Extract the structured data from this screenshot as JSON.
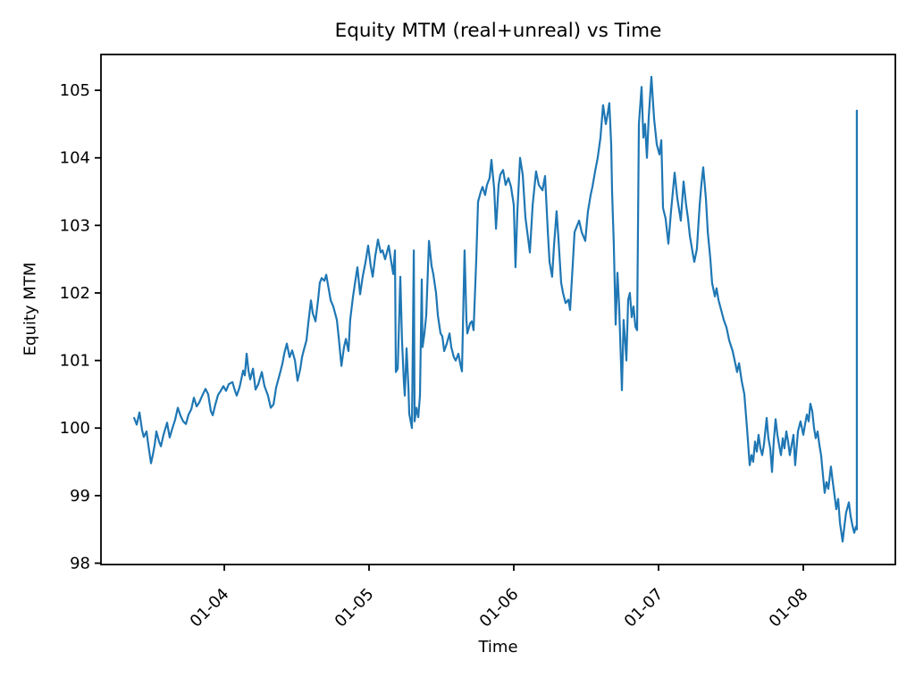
{
  "chart_data": {
    "type": "line",
    "title": "Equity MTM (real+unreal) vs Time",
    "xlabel": "Time",
    "ylabel": "Equity MTM",
    "series_name": "Equity MTM (real+unreal)",
    "line_color": "#1f77b4",
    "background_color": "#ffffff",
    "spine_color": "#000000",
    "grid": false,
    "legend": null,
    "x_unit": "fractional days, 0 = 01-03 00:00",
    "xlim": [
      0.148,
      5.636
    ],
    "ylim": [
      97.98,
      105.53
    ],
    "x_tick_rotation_deg": 45,
    "x_ticks": [
      {
        "pos": 1,
        "label": "01-04"
      },
      {
        "pos": 2,
        "label": "01-05"
      },
      {
        "pos": 3,
        "label": "01-06"
      },
      {
        "pos": 4,
        "label": "01-07"
      },
      {
        "pos": 5,
        "label": "01-08"
      }
    ],
    "y_ticks": [
      98,
      99,
      100,
      101,
      102,
      103,
      104,
      105
    ],
    "points": [
      [
        0.377,
        100.15
      ],
      [
        0.395,
        100.05
      ],
      [
        0.414,
        100.23
      ],
      [
        0.432,
        99.97
      ],
      [
        0.444,
        99.87
      ],
      [
        0.463,
        99.95
      ],
      [
        0.475,
        99.75
      ],
      [
        0.494,
        99.48
      ],
      [
        0.506,
        99.6
      ],
      [
        0.519,
        99.75
      ],
      [
        0.531,
        99.95
      ],
      [
        0.549,
        99.8
      ],
      [
        0.562,
        99.73
      ],
      [
        0.58,
        99.9
      ],
      [
        0.605,
        100.08
      ],
      [
        0.623,
        99.86
      ],
      [
        0.642,
        100.0
      ],
      [
        0.66,
        100.12
      ],
      [
        0.679,
        100.3
      ],
      [
        0.698,
        100.18
      ],
      [
        0.716,
        100.1
      ],
      [
        0.735,
        100.06
      ],
      [
        0.753,
        100.2
      ],
      [
        0.772,
        100.28
      ],
      [
        0.79,
        100.45
      ],
      [
        0.809,
        100.32
      ],
      [
        0.827,
        100.38
      ],
      [
        0.852,
        100.5
      ],
      [
        0.87,
        100.58
      ],
      [
        0.889,
        100.5
      ],
      [
        0.907,
        100.25
      ],
      [
        0.92,
        100.19
      ],
      [
        0.938,
        100.35
      ],
      [
        0.957,
        100.49
      ],
      [
        0.975,
        100.55
      ],
      [
        0.994,
        100.62
      ],
      [
        1.012,
        100.55
      ],
      [
        1.031,
        100.65
      ],
      [
        1.056,
        100.68
      ],
      [
        1.074,
        100.55
      ],
      [
        1.086,
        100.48
      ],
      [
        1.105,
        100.6
      ],
      [
        1.117,
        100.72
      ],
      [
        1.13,
        100.85
      ],
      [
        1.142,
        100.78
      ],
      [
        1.154,
        101.1
      ],
      [
        1.167,
        100.85
      ],
      [
        1.179,
        100.72
      ],
      [
        1.198,
        100.88
      ],
      [
        1.216,
        100.57
      ],
      [
        1.235,
        100.65
      ],
      [
        1.259,
        100.83
      ],
      [
        1.278,
        100.62
      ],
      [
        1.302,
        100.48
      ],
      [
        1.321,
        100.3
      ],
      [
        1.34,
        100.35
      ],
      [
        1.358,
        100.6
      ],
      [
        1.383,
        100.8
      ],
      [
        1.401,
        100.95
      ],
      [
        1.414,
        101.1
      ],
      [
        1.432,
        101.25
      ],
      [
        1.451,
        101.05
      ],
      [
        1.469,
        101.15
      ],
      [
        1.488,
        101.0
      ],
      [
        1.506,
        100.7
      ],
      [
        1.525,
        100.88
      ],
      [
        1.537,
        101.05
      ],
      [
        1.549,
        101.15
      ],
      [
        1.568,
        101.3
      ],
      [
        1.58,
        101.55
      ],
      [
        1.599,
        101.89
      ],
      [
        1.611,
        101.7
      ],
      [
        1.63,
        101.58
      ],
      [
        1.648,
        101.9
      ],
      [
        1.66,
        102.15
      ],
      [
        1.673,
        102.22
      ],
      [
        1.691,
        102.18
      ],
      [
        1.704,
        102.27
      ],
      [
        1.722,
        102.05
      ],
      [
        1.735,
        101.89
      ],
      [
        1.753,
        101.8
      ],
      [
        1.778,
        101.6
      ],
      [
        1.79,
        101.35
      ],
      [
        1.809,
        100.92
      ],
      [
        1.827,
        101.2
      ],
      [
        1.84,
        101.32
      ],
      [
        1.858,
        101.14
      ],
      [
        1.87,
        101.6
      ],
      [
        1.889,
        101.94
      ],
      [
        1.907,
        102.2
      ],
      [
        1.92,
        102.38
      ],
      [
        1.938,
        101.98
      ],
      [
        1.957,
        102.25
      ],
      [
        1.975,
        102.45
      ],
      [
        1.994,
        102.7
      ],
      [
        2.012,
        102.4
      ],
      [
        2.025,
        102.24
      ],
      [
        2.043,
        102.55
      ],
      [
        2.062,
        102.79
      ],
      [
        2.08,
        102.6
      ],
      [
        2.093,
        102.63
      ],
      [
        2.111,
        102.5
      ],
      [
        2.136,
        102.7
      ],
      [
        2.154,
        102.45
      ],
      [
        2.167,
        102.28
      ],
      [
        2.179,
        102.63
      ],
      [
        2.185,
        100.83
      ],
      [
        2.198,
        100.88
      ],
      [
        2.21,
        101.75
      ],
      [
        2.216,
        102.24
      ],
      [
        2.228,
        101.3
      ],
      [
        2.241,
        100.68
      ],
      [
        2.247,
        100.48
      ],
      [
        2.259,
        101.18
      ],
      [
        2.272,
        100.6
      ],
      [
        2.278,
        100.21
      ],
      [
        2.296,
        100.0
      ],
      [
        2.309,
        102.63
      ],
      [
        2.315,
        100.1
      ],
      [
        2.327,
        100.3
      ],
      [
        2.34,
        100.16
      ],
      [
        2.352,
        100.48
      ],
      [
        2.364,
        102.2
      ],
      [
        2.37,
        101.2
      ],
      [
        2.383,
        101.4
      ],
      [
        2.395,
        101.67
      ],
      [
        2.414,
        102.77
      ],
      [
        2.432,
        102.4
      ],
      [
        2.444,
        102.28
      ],
      [
        2.463,
        102.0
      ],
      [
        2.475,
        101.67
      ],
      [
        2.494,
        101.4
      ],
      [
        2.506,
        101.36
      ],
      [
        2.519,
        101.14
      ],
      [
        2.537,
        101.25
      ],
      [
        2.556,
        101.4
      ],
      [
        2.568,
        101.2
      ],
      [
        2.586,
        101.05
      ],
      [
        2.599,
        101.0
      ],
      [
        2.617,
        101.1
      ],
      [
        2.63,
        100.95
      ],
      [
        2.642,
        100.84
      ],
      [
        2.66,
        102.63
      ],
      [
        2.673,
        101.6
      ],
      [
        2.679,
        101.4
      ],
      [
        2.698,
        101.55
      ],
      [
        2.71,
        101.58
      ],
      [
        2.722,
        101.45
      ],
      [
        2.741,
        102.5
      ],
      [
        2.753,
        103.35
      ],
      [
        2.772,
        103.5
      ],
      [
        2.784,
        103.57
      ],
      [
        2.802,
        103.45
      ],
      [
        2.815,
        103.6
      ],
      [
        2.833,
        103.7
      ],
      [
        2.846,
        103.97
      ],
      [
        2.864,
        103.55
      ],
      [
        2.877,
        102.95
      ],
      [
        2.895,
        103.6
      ],
      [
        2.907,
        103.75
      ],
      [
        2.926,
        103.82
      ],
      [
        2.944,
        103.6
      ],
      [
        2.963,
        103.7
      ],
      [
        2.981,
        103.57
      ],
      [
        3.0,
        103.3
      ],
      [
        3.012,
        102.38
      ],
      [
        3.025,
        103.2
      ],
      [
        3.043,
        104.0
      ],
      [
        3.062,
        103.75
      ],
      [
        3.08,
        103.12
      ],
      [
        3.093,
        102.9
      ],
      [
        3.111,
        102.6
      ],
      [
        3.13,
        103.3
      ],
      [
        3.154,
        103.8
      ],
      [
        3.173,
        103.6
      ],
      [
        3.198,
        103.52
      ],
      [
        3.216,
        103.73
      ],
      [
        3.235,
        102.9
      ],
      [
        3.247,
        102.46
      ],
      [
        3.265,
        102.24
      ],
      [
        3.278,
        102.7
      ],
      [
        3.296,
        103.21
      ],
      [
        3.309,
        102.8
      ],
      [
        3.327,
        102.15
      ],
      [
        3.34,
        102.0
      ],
      [
        3.358,
        101.85
      ],
      [
        3.377,
        101.9
      ],
      [
        3.389,
        101.75
      ],
      [
        3.407,
        102.4
      ],
      [
        3.42,
        102.9
      ],
      [
        3.451,
        103.07
      ],
      [
        3.469,
        102.9
      ],
      [
        3.494,
        102.77
      ],
      [
        3.512,
        103.2
      ],
      [
        3.531,
        103.45
      ],
      [
        3.543,
        103.57
      ],
      [
        3.562,
        103.8
      ],
      [
        3.58,
        104.0
      ],
      [
        3.599,
        104.3
      ],
      [
        3.617,
        104.78
      ],
      [
        3.636,
        104.5
      ],
      [
        3.648,
        104.65
      ],
      [
        3.66,
        104.81
      ],
      [
        3.673,
        104.2
      ],
      [
        3.679,
        103.5
      ],
      [
        3.691,
        102.73
      ],
      [
        3.704,
        101.53
      ],
      [
        3.716,
        102.3
      ],
      [
        3.728,
        101.8
      ],
      [
        3.747,
        100.56
      ],
      [
        3.759,
        101.6
      ],
      [
        3.772,
        101.2
      ],
      [
        3.778,
        101.0
      ],
      [
        3.79,
        101.9
      ],
      [
        3.802,
        102.0
      ],
      [
        3.815,
        101.64
      ],
      [
        3.827,
        101.8
      ],
      [
        3.84,
        101.5
      ],
      [
        3.852,
        101.45
      ],
      [
        3.864,
        104.5
      ],
      [
        3.883,
        105.05
      ],
      [
        3.895,
        104.3
      ],
      [
        3.907,
        104.5
      ],
      [
        3.92,
        104.0
      ],
      [
        3.932,
        104.6
      ],
      [
        3.951,
        105.2
      ],
      [
        3.969,
        104.58
      ],
      [
        3.988,
        104.2
      ],
      [
        4.006,
        104.05
      ],
      [
        4.019,
        104.26
      ],
      [
        4.031,
        103.26
      ],
      [
        4.049,
        103.1
      ],
      [
        4.068,
        102.73
      ],
      [
        4.086,
        103.2
      ],
      [
        4.111,
        103.78
      ],
      [
        4.13,
        103.4
      ],
      [
        4.154,
        103.07
      ],
      [
        4.173,
        103.65
      ],
      [
        4.191,
        103.3
      ],
      [
        4.204,
        103.1
      ],
      [
        4.216,
        102.85
      ],
      [
        4.235,
        102.6
      ],
      [
        4.247,
        102.46
      ],
      [
        4.265,
        102.65
      ],
      [
        4.284,
        103.3
      ],
      [
        4.296,
        103.6
      ],
      [
        4.309,
        103.86
      ],
      [
        4.327,
        103.4
      ],
      [
        4.34,
        102.9
      ],
      [
        4.358,
        102.5
      ],
      [
        4.37,
        102.15
      ],
      [
        4.389,
        101.95
      ],
      [
        4.401,
        102.07
      ],
      [
        4.414,
        101.9
      ],
      [
        4.432,
        101.75
      ],
      [
        4.451,
        101.6
      ],
      [
        4.469,
        101.49
      ],
      [
        4.488,
        101.3
      ],
      [
        4.512,
        101.14
      ],
      [
        4.531,
        100.95
      ],
      [
        4.543,
        100.83
      ],
      [
        4.556,
        100.96
      ],
      [
        4.574,
        100.7
      ],
      [
        4.593,
        100.5
      ],
      [
        4.611,
        100.0
      ],
      [
        4.63,
        99.45
      ],
      [
        4.642,
        99.6
      ],
      [
        4.654,
        99.5
      ],
      [
        4.667,
        99.8
      ],
      [
        4.679,
        99.65
      ],
      [
        4.691,
        99.9
      ],
      [
        4.704,
        99.7
      ],
      [
        4.716,
        99.6
      ],
      [
        4.728,
        99.75
      ],
      [
        4.747,
        100.15
      ],
      [
        4.759,
        99.85
      ],
      [
        4.772,
        99.7
      ],
      [
        4.784,
        99.35
      ],
      [
        4.796,
        99.8
      ],
      [
        4.809,
        100.13
      ],
      [
        4.821,
        99.9
      ],
      [
        4.833,
        99.75
      ],
      [
        4.846,
        99.6
      ],
      [
        4.858,
        99.85
      ],
      [
        4.87,
        99.7
      ],
      [
        4.883,
        99.95
      ],
      [
        4.895,
        99.8
      ],
      [
        4.907,
        99.6
      ],
      [
        4.92,
        99.75
      ],
      [
        4.932,
        99.9
      ],
      [
        4.944,
        99.45
      ],
      [
        4.963,
        99.95
      ],
      [
        4.981,
        100.1
      ],
      [
        5.0,
        99.9
      ],
      [
        5.012,
        100.05
      ],
      [
        5.025,
        100.2
      ],
      [
        5.037,
        100.1
      ],
      [
        5.049,
        100.36
      ],
      [
        5.062,
        100.25
      ],
      [
        5.074,
        100.0
      ],
      [
        5.086,
        99.85
      ],
      [
        5.099,
        99.95
      ],
      [
        5.111,
        99.75
      ],
      [
        5.123,
        99.6
      ],
      [
        5.136,
        99.3
      ],
      [
        5.148,
        99.04
      ],
      [
        5.16,
        99.2
      ],
      [
        5.173,
        99.1
      ],
      [
        5.191,
        99.43
      ],
      [
        5.204,
        99.2
      ],
      [
        5.216,
        99.0
      ],
      [
        5.228,
        98.8
      ],
      [
        5.241,
        98.95
      ],
      [
        5.253,
        98.6
      ],
      [
        5.272,
        98.32
      ],
      [
        5.284,
        98.55
      ],
      [
        5.296,
        98.75
      ],
      [
        5.315,
        98.9
      ],
      [
        5.327,
        98.7
      ],
      [
        5.34,
        98.55
      ],
      [
        5.352,
        98.45
      ],
      [
        5.364,
        98.54
      ],
      [
        5.37,
        98.5
      ],
      [
        5.37,
        104.7
      ]
    ]
  }
}
